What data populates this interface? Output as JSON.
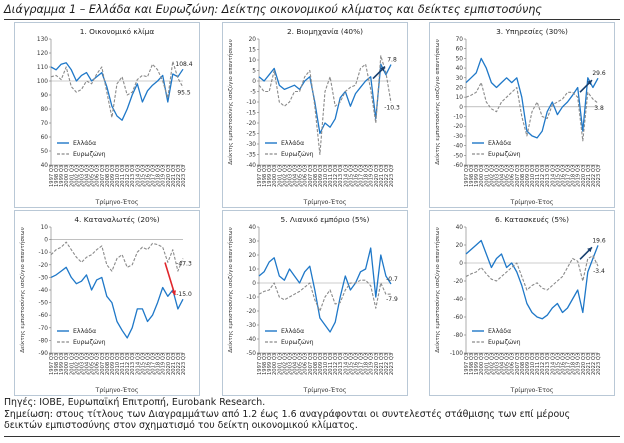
{
  "title": "Διάγραμμα 1 – Ελλάδα και Ευρωζώνη: Δείκτης οικονομικού κλίματος και δείκτες εμπιστοσύνης",
  "notes": {
    "source": "Πηγές: IOBE, Ευρωπαϊκή Επιτροπή, Eurobank Research.",
    "note_line1": "Σημείωση: στους τίτλους των Διαγραμμάτων από 1.2 έως 1.6 αναγράφονται οι συντελεστές στάθμισης των επί μέρους",
    "note_line2": "δεικτών εμπιστοσύνης στον σχηματισμό του δείκτη οικονομικού κλίματος."
  },
  "colors": {
    "greece": "#1f78c8",
    "eurozone": "#8a8a8a",
    "arrow_up": "#173f6e",
    "arrow_down": "#e0262b"
  },
  "x_tick_labels": [
    "1997 Q3",
    "1998 Q3",
    "1999 Q3",
    "2000 Q3",
    "2001 Q3",
    "2002 Q3",
    "2003 Q3",
    "2004 Q3",
    "2005 Q3",
    "2006 Q3",
    "2007 Q3",
    "2008 Q3",
    "2009 Q3",
    "2010 Q3",
    "2011 Q3",
    "2012 Q3",
    "2013 Q3",
    "2014 Q3",
    "2015 Q3",
    "2016 Q3",
    "2017 Q3",
    "2018 Q3",
    "2019 Q3",
    "2020 Q3",
    "2021 Q3",
    "2022 Q3",
    "2023 Q3"
  ],
  "chart_data": [
    {
      "type": "line",
      "title": "1. Οικονομικό κλίμα",
      "ylabel": "",
      "xlabel": "Τρίμηνο-Έτος",
      "ylim": [
        40,
        130
      ],
      "yticks": [
        40,
        50,
        60,
        70,
        80,
        90,
        100,
        110,
        120,
        130
      ],
      "x": [
        "1997 Q3",
        "1998 Q3",
        "1999 Q3",
        "2000 Q3",
        "2001 Q3",
        "2002 Q3",
        "2003 Q3",
        "2004 Q3",
        "2005 Q3",
        "2006 Q3",
        "2007 Q3",
        "2008 Q3",
        "2009 Q3",
        "2010 Q3",
        "2011 Q3",
        "2012 Q3",
        "2013 Q3",
        "2014 Q3",
        "2015 Q3",
        "2016 Q3",
        "2017 Q3",
        "2018 Q3",
        "2019 Q3",
        "2020 Q3",
        "2021 Q3",
        "2022 Q3",
        "2023 Q3"
      ],
      "series": [
        {
          "name": "Ελλάδα",
          "values": [
            110,
            108,
            112,
            113,
            108,
            100,
            104,
            106,
            100,
            103,
            106,
            96,
            82,
            75,
            72,
            80,
            90,
            98,
            85,
            93,
            97,
            100,
            104,
            85,
            105,
            103,
            108.4
          ]
        },
        {
          "name": "Ευρωζώνη",
          "values": [
            103,
            104,
            101,
            110,
            96,
            92,
            94,
            100,
            98,
            105,
            110,
            92,
            74,
            98,
            103,
            90,
            92,
            101,
            104,
            103,
            112,
            108,
            100,
            88,
            114,
            102,
            95.5
          ]
        }
      ],
      "annotations": [
        "108.4",
        "95.5"
      ],
      "legend": "bottom-left"
    },
    {
      "type": "line",
      "title": "2. Βιομηχανία (40%)",
      "ylabel": "Δείκτης εμπιστοσύνης ισοζύγιο απαντήσεων",
      "xlabel": "Τρίμηνο-Έτος",
      "ylim": [
        -40,
        20
      ],
      "yticks": [
        -40,
        -35,
        -30,
        -25,
        -20,
        -15,
        -10,
        -5,
        0,
        5,
        10,
        15,
        20
      ],
      "x": [
        "1997 Q3",
        "1998 Q3",
        "1999 Q3",
        "2000 Q3",
        "2001 Q3",
        "2002 Q3",
        "2003 Q3",
        "2004 Q3",
        "2005 Q3",
        "2006 Q3",
        "2007 Q3",
        "2008 Q3",
        "2009 Q3",
        "2010 Q3",
        "2011 Q3",
        "2012 Q3",
        "2013 Q3",
        "2014 Q3",
        "2015 Q3",
        "2016 Q3",
        "2017 Q3",
        "2018 Q3",
        "2019 Q3",
        "2020 Q3",
        "2021 Q3",
        "2022 Q3",
        "2023 Q3"
      ],
      "series": [
        {
          "name": "Ελλάδα",
          "values": [
            2,
            0,
            3,
            6,
            -2,
            -4,
            -3,
            -2,
            -4,
            0,
            2,
            -10,
            -25,
            -20,
            -22,
            -18,
            -8,
            -5,
            -12,
            -6,
            -3,
            0,
            2,
            -18,
            8,
            3,
            7.8
          ]
        },
        {
          "name": "Ευρωζώνη",
          "values": [
            -2,
            -5,
            -5,
            5,
            -10,
            -12,
            -10,
            -5,
            -5,
            2,
            5,
            -12,
            -35,
            -5,
            2,
            -12,
            -10,
            -5,
            -3,
            -2,
            6,
            8,
            -4,
            -20,
            12,
            4,
            -10.3
          ]
        }
      ],
      "annotations": [
        "7.8",
        "-10.3"
      ],
      "legend": "bottom-left"
    },
    {
      "type": "line",
      "title": "3. Υπηρεσίες (30%)",
      "ylabel": "Δείκτης εμπιστοσύνης ισοζύγιο απαντήσεων",
      "xlabel": "Τρίμηνο-Έτος",
      "ylim": [
        -60,
        70
      ],
      "yticks": [
        -60,
        -50,
        -40,
        -30,
        -20,
        -10,
        0,
        10,
        20,
        30,
        40,
        50,
        60,
        70
      ],
      "x": [
        "1997 Q3",
        "1998 Q3",
        "1999 Q3",
        "2000 Q3",
        "2001 Q3",
        "2002 Q3",
        "2003 Q3",
        "2004 Q3",
        "2005 Q3",
        "2006 Q3",
        "2007 Q3",
        "2008 Q3",
        "2009 Q3",
        "2010 Q3",
        "2011 Q3",
        "2012 Q3",
        "2013 Q3",
        "2014 Q3",
        "2015 Q3",
        "2016 Q3",
        "2017 Q3",
        "2018 Q3",
        "2019 Q3",
        "2020 Q3",
        "2021 Q3",
        "2022 Q3",
        "2023 Q3"
      ],
      "series": [
        {
          "name": "Ελλάδα",
          "values": [
            25,
            30,
            35,
            50,
            40,
            25,
            20,
            25,
            30,
            25,
            30,
            10,
            -25,
            -30,
            -32,
            -25,
            -5,
            5,
            -8,
            0,
            5,
            12,
            20,
            -25,
            30,
            20,
            29.6
          ]
        },
        {
          "name": "Ευρωζώνη",
          "values": [
            10,
            12,
            15,
            25,
            5,
            -2,
            -5,
            5,
            10,
            15,
            20,
            -10,
            -30,
            -5,
            5,
            -10,
            -12,
            2,
            5,
            8,
            15,
            15,
            10,
            -35,
            15,
            8,
            3.8
          ]
        }
      ],
      "annotations": [
        "29.6",
        "3.8"
      ],
      "legend": "bottom-left"
    },
    {
      "type": "line",
      "title": "4. Καταναλωτές (20%)",
      "ylabel": "Δείκτης εμπιστοσύνης ισοζύγιο απαντήσεων",
      "xlabel": "Τρίμηνο-Έτος",
      "ylim": [
        -90,
        10
      ],
      "yticks": [
        -90,
        -80,
        -70,
        -60,
        -50,
        -40,
        -30,
        -20,
        -10,
        0,
        10
      ],
      "x": [
        "1997 Q3",
        "1998 Q3",
        "1999 Q3",
        "2000 Q3",
        "2001 Q3",
        "2002 Q3",
        "2003 Q3",
        "2004 Q3",
        "2005 Q3",
        "2006 Q3",
        "2007 Q3",
        "2008 Q3",
        "2009 Q3",
        "2010 Q3",
        "2011 Q3",
        "2012 Q3",
        "2013 Q3",
        "2014 Q3",
        "2015 Q3",
        "2016 Q3",
        "2017 Q3",
        "2018 Q3",
        "2019 Q3",
        "2020 Q3",
        "2021 Q3",
        "2022 Q3",
        "2023 Q3"
      ],
      "series": [
        {
          "name": "Ελλάδα",
          "values": [
            -30,
            -28,
            -25,
            -22,
            -30,
            -35,
            -33,
            -28,
            -40,
            -32,
            -30,
            -45,
            -50,
            -65,
            -72,
            -78,
            -70,
            -55,
            -55,
            -65,
            -60,
            -50,
            -38,
            -45,
            -40,
            -55,
            -47.3
          ]
        },
        {
          "name": "Ευρωζώνη",
          "values": [
            -12,
            -8,
            -6,
            -2,
            -8,
            -14,
            -18,
            -14,
            -12,
            -8,
            -5,
            -20,
            -25,
            -15,
            -12,
            -22,
            -20,
            -10,
            -6,
            -8,
            -3,
            -4,
            -6,
            -18,
            -8,
            -25,
            -15.0
          ]
        }
      ],
      "annotations": [
        "-15.0",
        "-47.3"
      ],
      "legend": "bottom-left"
    },
    {
      "type": "line",
      "title": "5. Λιανικό εμπόριο (5%)",
      "ylabel": "Δείκτης εμπιστοσύνης ισοζύγιο απαντήσεων",
      "xlabel": "Τρίμηνο-Έτος",
      "ylim": [
        -50,
        40
      ],
      "yticks": [
        -50,
        -40,
        -30,
        -20,
        -10,
        0,
        10,
        20,
        30,
        40
      ],
      "x": [
        "1997 Q3",
        "1998 Q3",
        "1999 Q3",
        "2000 Q3",
        "2001 Q3",
        "2002 Q3",
        "2003 Q3",
        "2004 Q3",
        "2005 Q3",
        "2006 Q3",
        "2007 Q3",
        "2008 Q3",
        "2009 Q3",
        "2010 Q3",
        "2011 Q3",
        "2012 Q3",
        "2013 Q3",
        "2014 Q3",
        "2015 Q3",
        "2016 Q3",
        "2017 Q3",
        "2018 Q3",
        "2019 Q3",
        "2020 Q3",
        "2021 Q3",
        "2022 Q3",
        "2023 Q3"
      ],
      "series": [
        {
          "name": "Ελλάδα",
          "values": [
            5,
            8,
            15,
            18,
            5,
            2,
            10,
            5,
            0,
            8,
            12,
            -5,
            -25,
            -30,
            -35,
            -28,
            -10,
            5,
            -5,
            0,
            8,
            10,
            25,
            -10,
            20,
            5,
            -0.7
          ]
        },
        {
          "name": "Ευρωζώνη",
          "values": [
            -8,
            -6,
            -5,
            0,
            -10,
            -12,
            -10,
            -8,
            -6,
            -3,
            0,
            -12,
            -20,
            -10,
            -5,
            -15,
            -14,
            -5,
            0,
            0,
            2,
            2,
            -2,
            -18,
            0,
            -8,
            -7.9
          ]
        }
      ],
      "annotations": [
        "-0.7",
        "-7.9"
      ],
      "legend": "bottom-left"
    },
    {
      "type": "line",
      "title": "6. Κατασκευές (5%)",
      "ylabel": "Δείκτης εμπιστοσύνης ισοζύγιο απαντήσεων",
      "xlabel": "Τρίμηνο-Έτος",
      "ylim": [
        -100,
        40
      ],
      "yticks": [
        -100,
        -80,
        -60,
        -40,
        -20,
        0,
        20,
        40
      ],
      "x": [
        "1997 Q3",
        "1998 Q3",
        "1999 Q3",
        "2000 Q3",
        "2001 Q3",
        "2002 Q3",
        "2003 Q3",
        "2004 Q3",
        "2005 Q3",
        "2006 Q3",
        "2007 Q3",
        "2008 Q3",
        "2009 Q3",
        "2010 Q3",
        "2011 Q3",
        "2012 Q3",
        "2013 Q3",
        "2014 Q3",
        "2015 Q3",
        "2016 Q3",
        "2017 Q3",
        "2018 Q3",
        "2019 Q3",
        "2020 Q3",
        "2021 Q3",
        "2022 Q3",
        "2023 Q3"
      ],
      "series": [
        {
          "name": "Ελλάδα",
          "values": [
            10,
            15,
            20,
            25,
            10,
            -5,
            5,
            10,
            -5,
            0,
            -10,
            -25,
            -45,
            -55,
            -60,
            -62,
            -58,
            -50,
            -45,
            -55,
            -50,
            -40,
            -30,
            -55,
            -10,
            5,
            19.6
          ]
        },
        {
          "name": "Ευρωζώνη",
          "values": [
            -15,
            -12,
            -10,
            -5,
            -12,
            -18,
            -20,
            -15,
            -10,
            -5,
            0,
            -15,
            -30,
            -25,
            -22,
            -28,
            -30,
            -25,
            -20,
            -15,
            -5,
            5,
            2,
            -20,
            5,
            8,
            -3.4
          ]
        }
      ],
      "annotations": [
        "19.6",
        "-3.4"
      ],
      "legend": "bottom-left"
    }
  ]
}
